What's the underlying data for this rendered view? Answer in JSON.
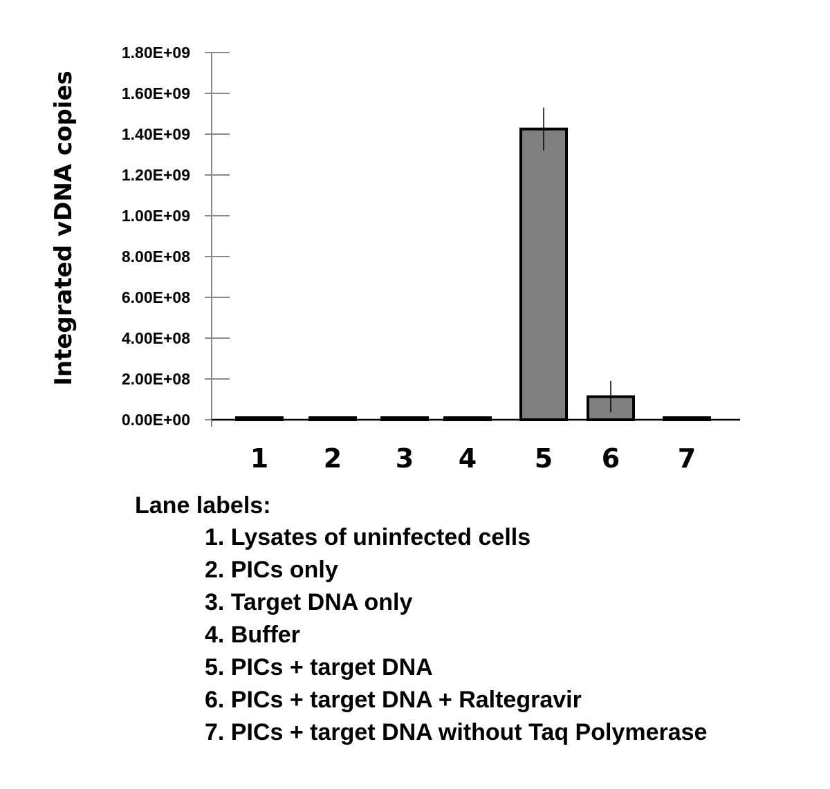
{
  "chart_data": {
    "type": "bar",
    "categories": [
      "1",
      "2",
      "3",
      "4",
      "5",
      "6",
      "7"
    ],
    "values": [
      10000000,
      10000000,
      10000000,
      10000000,
      1425000000,
      113000000,
      10000000
    ],
    "error_bars": [
      null,
      null,
      null,
      null,
      105000000,
      77000000,
      null
    ],
    "ylabel": "Integrated vDNA copies",
    "xlabel": "",
    "ylim": [
      0,
      1800000000
    ],
    "yticks": [
      "0.00E+00",
      "2.00E+08",
      "4.00E+08",
      "6.00E+08",
      "8.00E+08",
      "1.00E+09",
      "1.20E+09",
      "1.40E+09",
      "1.60E+09",
      "1.80E+09"
    ],
    "ytick_values": [
      0,
      200000000,
      400000000,
      600000000,
      800000000,
      1000000000,
      1200000000,
      1400000000,
      1600000000,
      1800000000
    ],
    "bar_color": "#808080",
    "bar_edge_color": "#000000",
    "grid": false
  },
  "legend": {
    "title": "Lane labels:",
    "items": [
      "1. Lysates of uninfected cells",
      "2. PICs only",
      "3. Target DNA only",
      "4. Buffer",
      "5. PICs + target DNA",
      "6. PICs + target DNA + Raltegravir",
      "7. PICs + target DNA without Taq Polymerase"
    ]
  }
}
